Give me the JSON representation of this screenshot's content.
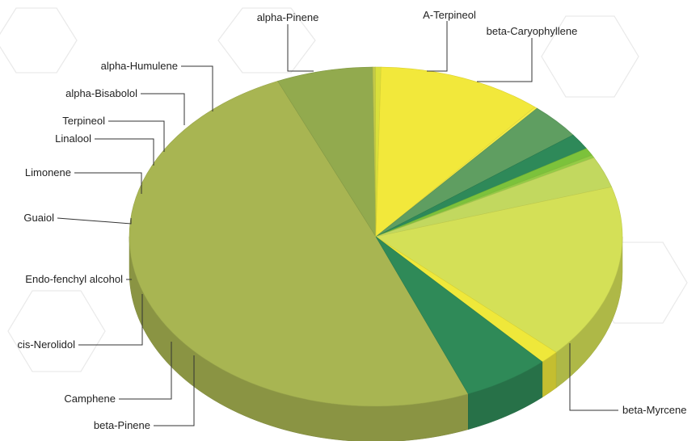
{
  "chart_data": {
    "type": "pie",
    "style": "3d",
    "legend": "none",
    "slices": [
      {
        "label": "beta-Myrcene",
        "value": 55.0,
        "color": "#a8b552"
      },
      {
        "label": "beta-Pinene",
        "value": 7.0,
        "color": "#92aa4e"
      },
      {
        "label": "Camphene",
        "value": 0.2,
        "color": "#c2c94a"
      },
      {
        "label": "cis-Nerolidol",
        "value": 0.4,
        "color": "#d9df3c"
      },
      {
        "label": "Endo-fenchyl alcohol",
        "value": 12.0,
        "color": "#f2e83b"
      },
      {
        "label": "Guaiol",
        "value": 0.2,
        "color": "#f6ec45"
      },
      {
        "label": "Limonene",
        "value": 3.8,
        "color": "#5f9e61"
      },
      {
        "label": "Linalool",
        "value": 1.7,
        "color": "#2e8959"
      },
      {
        "label": "Terpineol",
        "value": 0.8,
        "color": "#7cc23b"
      },
      {
        "label": "alpha-Bisabolol",
        "value": 0.3,
        "color": "#93cc45"
      },
      {
        "label": "alpha-Humulene",
        "value": 3.3,
        "color": "#c2d85f"
      },
      {
        "label": "alpha-Pinene",
        "value": 18.5,
        "color": "#d4e057"
      },
      {
        "label": "A-Terpineol",
        "value": 1.4,
        "color": "#efe83a"
      },
      {
        "label": "beta-Caryophyllene",
        "value": 6.3,
        "color": "#2f8a58"
      }
    ]
  }
}
